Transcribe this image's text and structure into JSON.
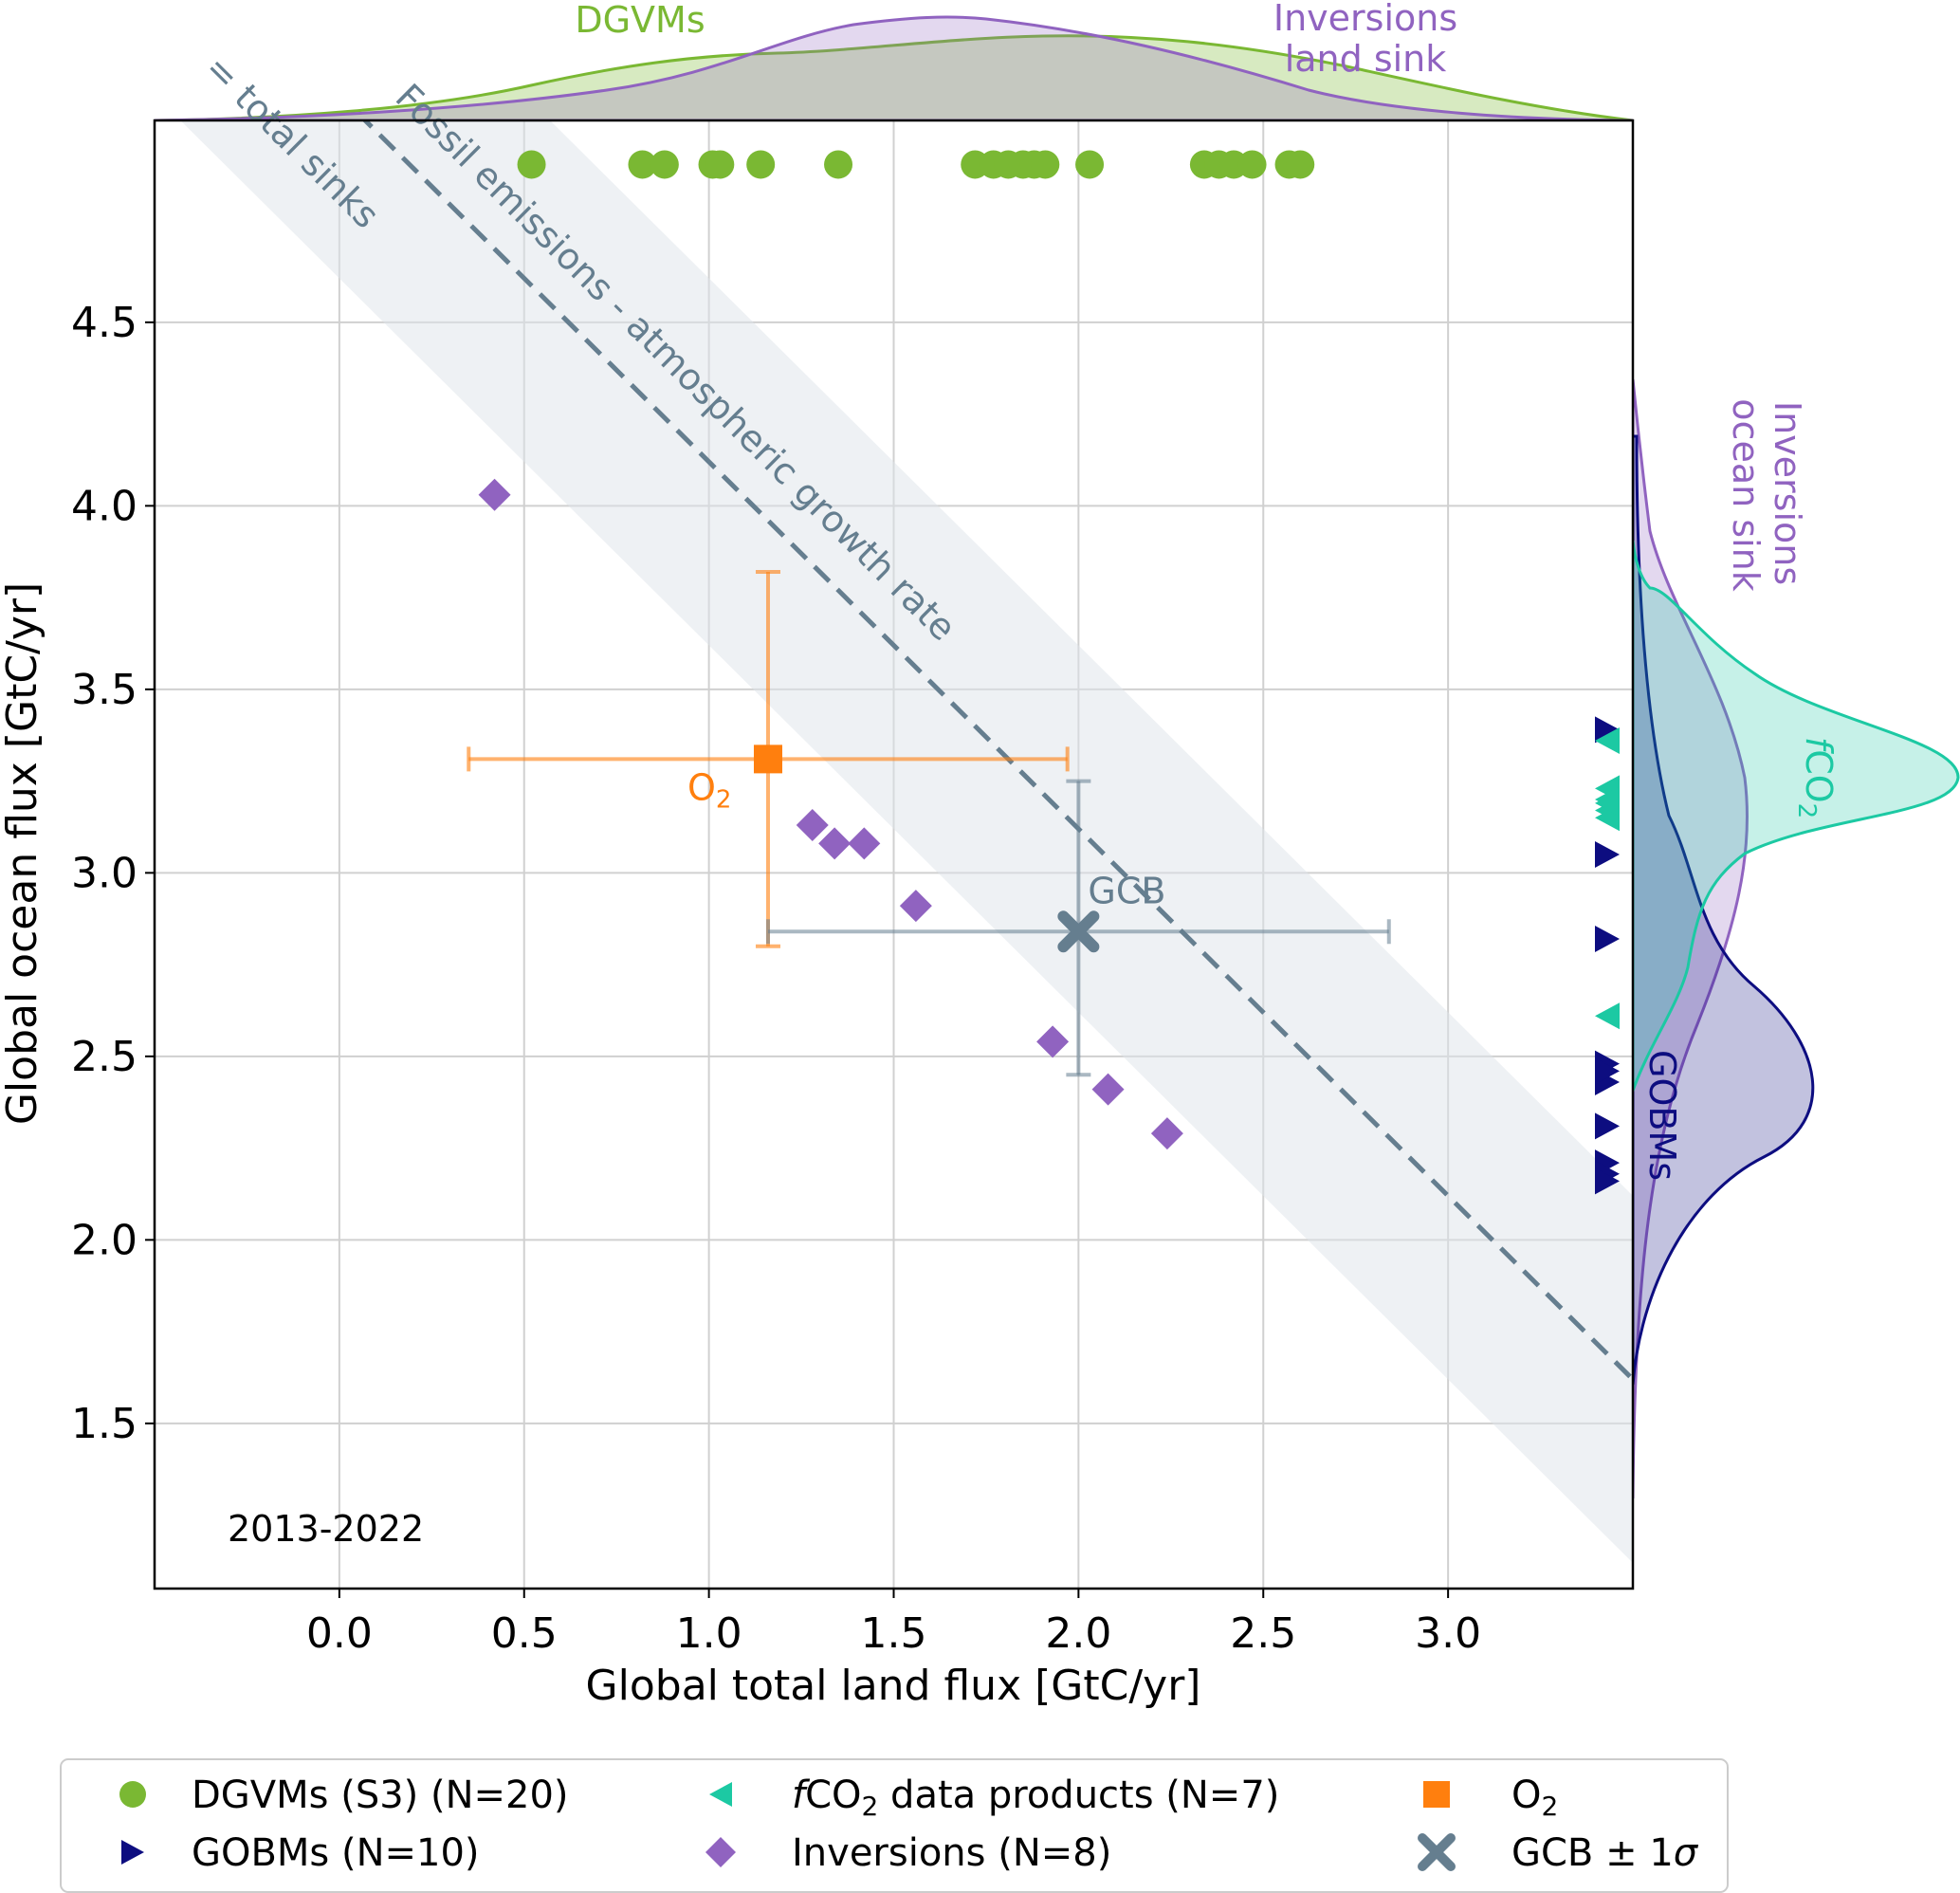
{
  "chart_data": {
    "type": "scatter",
    "title": "",
    "xlabel": "Global total land flux [GtC/yr]",
    "ylabel": "Global ocean flux [GtC/yr]",
    "xlim": [
      -0.5,
      3.5
    ],
    "ylim": [
      1.05,
      5.05
    ],
    "xticks": [
      "0.0",
      "0.5",
      "1.0",
      "1.5",
      "2.0",
      "2.5",
      "3.0"
    ],
    "yticks": [
      "1.5",
      "2.0",
      "2.5",
      "3.0",
      "3.5",
      "4.0",
      "4.5"
    ],
    "grid": true,
    "period_label": "2013-2022",
    "budget_line": {
      "label_line1": "Fossil emissions - atmospheric growth rate",
      "label_line2": "= total sinks",
      "total": 5.12,
      "band_halfwidth": 0.5
    },
    "colors": {
      "dgvm": "#7ab833",
      "gobm": "#0d0d80",
      "fco2": "#1cc9a3",
      "inversion": "#9063c0",
      "o2": "#ff7f0e",
      "gcb": "#657e8f",
      "band": "#dde3ea"
    },
    "series": [
      {
        "name": "DGVMs",
        "marker": "circle",
        "x": [
          0.52,
          0.82,
          0.88,
          1.01,
          1.03,
          1.14,
          1.35,
          1.72,
          1.77,
          1.81,
          1.85,
          1.88,
          1.91,
          2.03,
          2.34,
          2.38,
          2.42,
          2.47,
          2.57,
          2.6
        ],
        "y_position": "top"
      },
      {
        "name": "GOBMs",
        "marker": "triangle-right",
        "y": [
          3.39,
          3.05,
          2.82,
          2.48,
          2.43,
          2.31,
          2.21,
          2.18,
          2.16,
          2.46
        ],
        "x_position": "right"
      },
      {
        "name": "fCO2 data products",
        "marker": "triangle-left",
        "y": [
          3.36,
          3.23,
          3.2,
          3.17,
          3.15,
          3.19,
          2.61
        ],
        "x_position": "right"
      },
      {
        "name": "Inversions",
        "marker": "diamond",
        "x": [
          0.42,
          1.28,
          1.34,
          1.42,
          1.56,
          1.93,
          2.08,
          2.24
        ],
        "y": [
          4.03,
          3.13,
          3.08,
          3.08,
          2.91,
          2.54,
          2.41,
          2.29
        ]
      }
    ],
    "o2": {
      "label": "O2",
      "x": 1.16,
      "y": 3.31,
      "x_err": [
        0.35,
        1.97
      ],
      "y_err": [
        2.8,
        3.82
      ]
    },
    "gcb": {
      "label": "GCB",
      "x": 2.0,
      "y": 2.84,
      "x_err": [
        1.16,
        2.84
      ],
      "y_err": [
        2.45,
        3.25
      ]
    },
    "marginal_labels": {
      "top_dgvm": "DGVMs",
      "top_inv_line1": "Inversions",
      "top_inv_line2": "land sink",
      "right_inv_line1": "Inversions",
      "right_inv_line2": "ocean sink",
      "right_gobm": "GOBMs",
      "right_fco2_f": "f",
      "right_fco2_co": "CO",
      "right_fco2_sub": "2"
    },
    "legend": {
      "dgvm": "DGVMs (S3) (N=20)",
      "gobm": "GOBMs (N=10)",
      "fco2_f": "f",
      "fco2_co": "CO",
      "fco2_sub": "2",
      "fco2_rest": " data products (N=7)",
      "inversion": "Inversions (N=8)",
      "o2_main": "O",
      "o2_sub": "2",
      "gcb_main": "GCB ± 1",
      "gcb_sigma": "σ"
    },
    "point_labels": {
      "o2_main": "O",
      "o2_sub": "2",
      "gcb": "GCB"
    }
  }
}
